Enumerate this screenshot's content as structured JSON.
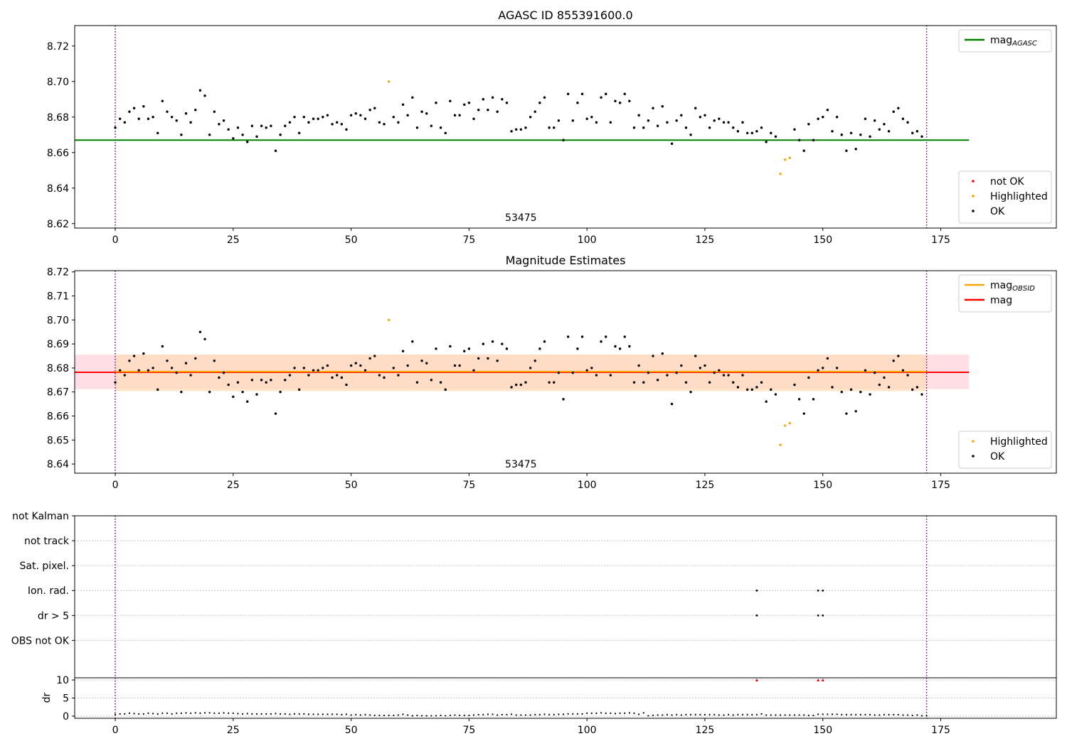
{
  "figure": {
    "background": "#ffffff"
  },
  "colors": {
    "ok": "#000000",
    "highlighted": "#ffa500",
    "not_ok": "#ff0000",
    "mag_agasc": "#008000",
    "mag_obsid": "#ffa500",
    "mag": "#ff0000",
    "band_mag": "#ffc0cb",
    "band_obsid": "#ffdab3",
    "vline": "#800080",
    "grid": "#b0b0b0"
  },
  "chart_data": [
    {
      "id": "agasc",
      "type": "scatter",
      "title": "AGASC ID 855391600.0",
      "xlim": [
        -8.6,
        199.5
      ],
      "ylim": [
        8.6175,
        8.7315
      ],
      "xticks": [
        0,
        25,
        50,
        75,
        100,
        125,
        150,
        175
      ],
      "yticks": [
        8.62,
        8.64,
        8.66,
        8.68,
        8.7,
        8.72
      ],
      "ytick_labels": [
        "8.62",
        "8.64",
        "8.66",
        "8.68",
        "8.70",
        "8.72"
      ],
      "annotation": {
        "text": "53475",
        "x": 86,
        "y": 8.6215
      },
      "vlines": [
        0,
        172
      ],
      "hlines": [
        {
          "y": 8.667,
          "x": [
            -8.6,
            181
          ],
          "color": "#008000"
        }
      ],
      "legend_upper": {
        "position": "upper right",
        "entries": [
          {
            "label": "mag",
            "sub": "AGASC",
            "color": "#008000",
            "kind": "line"
          }
        ]
      },
      "legend_lower": {
        "position": "lower right",
        "entries": [
          {
            "label": "not OK",
            "color": "#ff0000",
            "kind": "dot"
          },
          {
            "label": "Highlighted",
            "color": "#ffa500",
            "kind": "dot"
          },
          {
            "label": "OK",
            "color": "#000000",
            "kind": "dot"
          }
        ]
      }
    },
    {
      "id": "mag-estimates",
      "type": "scatter",
      "title": "Magnitude Estimates",
      "xlim": [
        -8.6,
        199.5
      ],
      "ylim": [
        8.6362,
        8.7205
      ],
      "xticks": [
        0,
        25,
        50,
        75,
        100,
        125,
        150,
        175
      ],
      "yticks": [
        8.64,
        8.65,
        8.66,
        8.67,
        8.68,
        8.69,
        8.7,
        8.71,
        8.72
      ],
      "ytick_labels": [
        "8.64",
        "8.65",
        "8.66",
        "8.67",
        "8.68",
        "8.69",
        "8.70",
        "8.71",
        "8.72"
      ],
      "annotation": {
        "text": "53475",
        "x": 86,
        "y": 8.6385
      },
      "vlines": [
        0,
        172
      ],
      "bands": [
        {
          "y": [
            8.6712,
            8.6855
          ],
          "x": [
            -8.6,
            181
          ],
          "color": "#ffc0cb"
        },
        {
          "y": [
            8.6703,
            8.6856
          ],
          "x": [
            0,
            172
          ],
          "color": "#ffdab3"
        }
      ],
      "hlines": [
        {
          "y": 8.6782,
          "x": [
            -8.6,
            181
          ],
          "color": "#ff0000"
        },
        {
          "y": 8.6785,
          "x": [
            0,
            172
          ],
          "color": "#ffa500"
        }
      ],
      "legend_upper": {
        "position": "upper right",
        "entries": [
          {
            "label": "mag",
            "sub": "OBSID",
            "color": "#ffa500",
            "kind": "line"
          },
          {
            "label": "mag",
            "sub": "",
            "color": "#ff0000",
            "kind": "line"
          }
        ]
      },
      "legend_lower": {
        "position": "lower right",
        "entries": [
          {
            "label": "Highlighted",
            "color": "#ffa500",
            "kind": "dot"
          },
          {
            "label": "OK",
            "color": "#000000",
            "kind": "dot"
          }
        ]
      }
    },
    {
      "id": "flags",
      "type": "scatter",
      "xlim": [
        -8.6,
        199.5
      ],
      "ylim": [
        -0.5,
        6.0
      ],
      "yticks": [
        1,
        2,
        3,
        4,
        5,
        6
      ],
      "ytick_labels": [
        "OBS not OK",
        "dr > 5",
        "Ion. rad.",
        "Sat. pixel.",
        "not track",
        "not Kalman"
      ],
      "vlines": [
        0,
        172
      ],
      "points": {
        "Ion. rad.": [
          136,
          149,
          150
        ],
        "dr > 5": [
          136,
          149,
          150
        ]
      }
    },
    {
      "id": "dr",
      "type": "scatter",
      "ylabel": "dr",
      "xlim": [
        -8.6,
        199.5
      ],
      "ylim": [
        -0.6,
        10.6
      ],
      "xticks": [
        0,
        25,
        50,
        75,
        100,
        125,
        150,
        175
      ],
      "yticks": [
        0,
        5,
        10
      ],
      "ytick_labels": [
        "0",
        "5",
        "10"
      ],
      "vlines": [
        0,
        172
      ],
      "not_ok_x": [
        136,
        149,
        150
      ],
      "not_ok_y": 10,
      "values": [
        0.5,
        0.6,
        0.6,
        0.8,
        0.7,
        0.6,
        0.6,
        0.8,
        0.7,
        0.6,
        0.8,
        0.8,
        0.6,
        0.8,
        0.8,
        0.9,
        0.8,
        0.9,
        0.8,
        0.9,
        0.9,
        0.8,
        0.8,
        0.9,
        0.8,
        0.8,
        0.7,
        0.6,
        0.7,
        0.6,
        0.6,
        0.6,
        0.6,
        0.6,
        0.7,
        0.6,
        0.6,
        0.5,
        0.6,
        0.6,
        0.6,
        0.5,
        0.5,
        0.5,
        0.5,
        0.5,
        0.5,
        0.5,
        0.4,
        0.5,
        0.3,
        0.4,
        0.3,
        0.4,
        0.3,
        0.2,
        0.2,
        0.2,
        0.2,
        0.2,
        0.3,
        0.5,
        0.3,
        0.1,
        0.2,
        0.1,
        0.1,
        0.1,
        0.1,
        0.2,
        0.1,
        0.2,
        0.3,
        0.2,
        0.2,
        0.2,
        0.3,
        0.4,
        0.4,
        0.5,
        0.5,
        0.3,
        0.4,
        0.4,
        0.5,
        0.3,
        0.3,
        0.3,
        0.3,
        0.4,
        0.4,
        0.5,
        0.4,
        0.4,
        0.5,
        0.5,
        0.6,
        0.6,
        0.6,
        0.6,
        0.8,
        0.8,
        0.8,
        0.9,
        0.8,
        0.8,
        0.7,
        0.8,
        0.8,
        0.9,
        0.8,
        0.5,
        0.9,
        0.1,
        0.2,
        0.3,
        0.3,
        0.4,
        0.3,
        0.4,
        0.3,
        0.4,
        0.4,
        0.4,
        0.4,
        0.4,
        0.4,
        0.4,
        0.3,
        0.3,
        0.4,
        0.3,
        0.4,
        0.4,
        0.4,
        0.4,
        0.4,
        0.6,
        0.3,
        0.3,
        0.3,
        0.3,
        0.3,
        0.3,
        0.3,
        0.3,
        0.3,
        0.2,
        0.2,
        0.5,
        0.5,
        0.5,
        0.5,
        0.5,
        0.4,
        0.4,
        0.4,
        0.4,
        0.4,
        0.4,
        0.4,
        0.3,
        0.3,
        0.4,
        0.4,
        0.4,
        0.4,
        0.3,
        0.3,
        0.2,
        0.3,
        0.1,
        0.1
      ]
    }
  ],
  "series_mag": {
    "values": [
      8.674,
      8.679,
      8.677,
      8.683,
      8.685,
      8.679,
      8.686,
      8.679,
      8.68,
      8.671,
      8.689,
      8.683,
      8.68,
      8.678,
      8.67,
      8.682,
      8.677,
      8.684,
      8.695,
      8.692,
      8.67,
      8.683,
      8.676,
      8.678,
      8.673,
      8.668,
      8.674,
      8.67,
      8.666,
      8.675,
      8.669,
      8.675,
      8.674,
      8.675,
      8.661,
      8.67,
      8.675,
      8.677,
      8.68,
      8.671,
      8.68,
      8.677,
      8.679,
      8.679,
      8.68,
      8.681,
      8.676,
      8.677,
      8.676,
      8.673,
      8.681,
      8.682,
      8.681,
      8.679,
      8.684,
      8.685,
      8.677,
      8.676,
      8.7,
      8.68,
      8.677,
      8.687,
      8.681,
      8.691,
      8.674,
      8.683,
      8.682,
      8.675,
      8.688,
      8.674,
      8.671,
      8.689,
      8.681,
      8.681,
      8.687,
      8.688,
      8.679,
      8.684,
      8.69,
      8.684,
      8.691,
      8.683,
      8.69,
      8.688,
      8.672,
      8.673,
      8.673,
      8.674,
      8.68,
      8.683,
      8.688,
      8.691,
      8.674,
      8.674,
      8.678,
      8.667,
      8.693,
      8.678,
      8.688,
      8.693,
      8.679,
      8.68,
      8.677,
      8.691,
      8.693,
      8.677,
      8.689,
      8.688,
      8.693,
      8.689,
      8.674,
      8.681,
      8.674,
      8.678,
      8.685,
      8.675,
      8.686,
      8.677,
      8.665,
      8.678,
      8.681,
      8.674,
      8.67,
      8.685,
      8.68,
      8.681,
      8.674,
      8.678,
      8.679,
      8.677,
      8.677,
      8.674,
      8.672,
      8.677,
      8.671,
      8.671,
      8.672,
      8.674,
      8.666,
      8.671,
      8.669,
      8.648,
      8.656,
      8.657,
      8.673,
      8.667,
      8.661,
      8.676,
      8.667,
      8.679,
      8.68,
      8.684,
      8.672,
      8.68,
      8.67,
      8.661,
      8.671,
      8.662,
      8.67,
      8.679,
      8.669,
      8.678,
      8.673,
      8.676,
      8.672,
      8.683,
      8.685,
      8.679,
      8.677,
      8.671,
      8.672,
      8.669
    ],
    "highlighted_x": [
      58,
      141,
      142,
      143
    ]
  }
}
